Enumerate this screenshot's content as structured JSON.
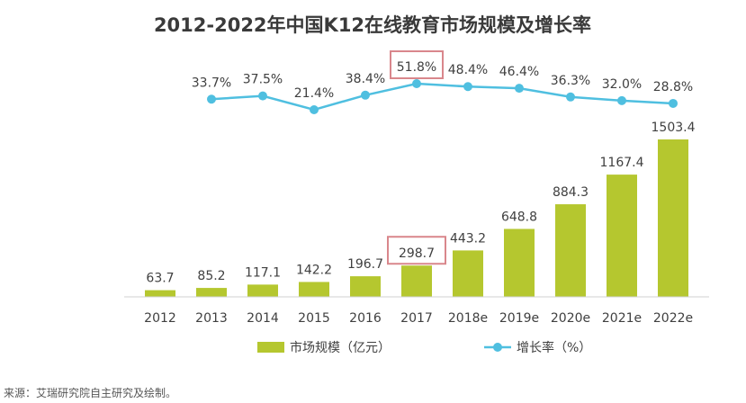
{
  "chart_data": {
    "type": "bar",
    "title": "2012-2022年中国K12在线教育市场规模及增长率",
    "categories": [
      "2012",
      "2013",
      "2014",
      "2015",
      "2016",
      "2017",
      "2018e",
      "2019e",
      "2020e",
      "2021e",
      "2022e"
    ],
    "series": [
      {
        "name": "市场规模（亿元）",
        "type": "bar",
        "values": [
          63.7,
          85.2,
          117.1,
          142.2,
          196.7,
          298.7,
          443.2,
          648.8,
          884.3,
          1167.4,
          1503.4
        ],
        "labels": [
          "63.7",
          "85.2",
          "117.1",
          "142.2",
          "196.7",
          "298.7",
          "443.2",
          "648.8",
          "884.3",
          "1167.4",
          "1503.4"
        ],
        "color": "#b5c72f"
      },
      {
        "name": "增长率（%）",
        "type": "line",
        "values": [
          null,
          33.7,
          37.5,
          21.4,
          38.4,
          51.8,
          48.4,
          46.4,
          36.3,
          32.0,
          28.8
        ],
        "labels": [
          null,
          "33.7%",
          "37.5%",
          "21.4%",
          "38.4%",
          "51.8%",
          "48.4%",
          "46.4%",
          "36.3%",
          "32.0%",
          "28.8%"
        ],
        "color": "#4fbfe0"
      }
    ],
    "highlight_index": 5,
    "highlight_color": "#d9878c",
    "legend_position": "bottom",
    "ylim_bar": [
      0,
      1503.4
    ],
    "ylim_line": [
      21.4,
      51.8
    ],
    "grid": false
  },
  "legend": {
    "bar_label": "市场规模（亿元）",
    "line_label": "增长率（%）"
  },
  "source": "来源：艾瑞研究院自主研究及绘制。"
}
